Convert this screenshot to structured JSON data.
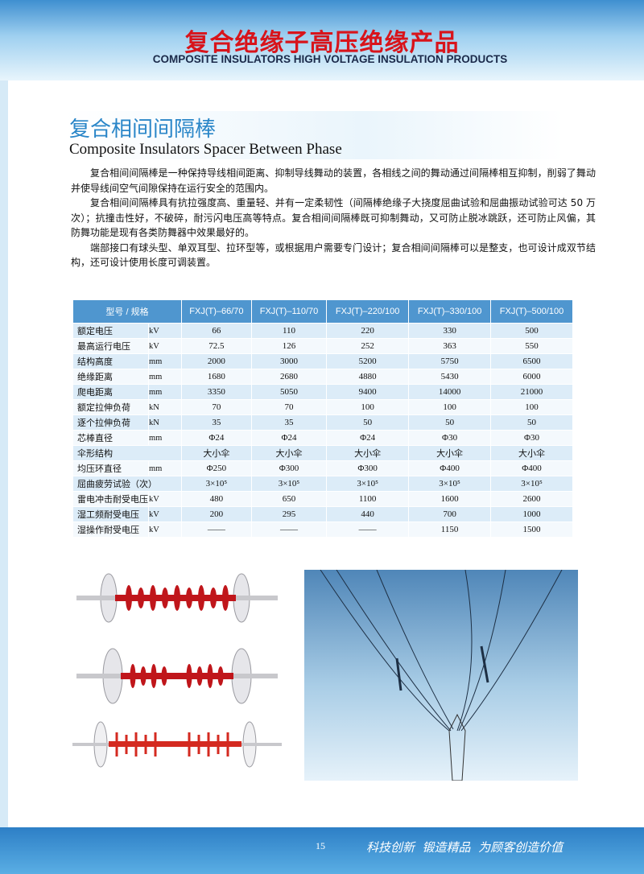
{
  "header": {
    "title": "复合绝缘子高压绝缘产品",
    "subtitle": "COMPOSITE INSULATORS HIGH VOLTAGE INSULATION PRODUCTS"
  },
  "section": {
    "title_cn": "复合相间间隔棒",
    "title_en": "Composite Insulators Spacer Between Phase"
  },
  "paragraphs": [
    "复合相间间隔棒是一种保持导线相间距离、抑制导线舞动的装置，各相线之间的舞动通过间隔棒相互抑制，削弱了舞动并使导线间空气间隙保持在运行安全的范围内。",
    "复合相间间隔棒具有抗拉强度高、重量轻、并有一定柔韧性（间隔棒绝缘子大挠度屈曲试验和屈曲振动试验可达 50 万次）；抗撞击性好，不破碎，耐污闪电压高等特点。复合相间间隔棒既可抑制舞动，又可防止脱冰跳跃，还可防止风偏，其防舞功能是现有各类防舞器中效果最好的。",
    "端部接口有球头型、单双耳型、拉环型等，或根据用户需要专门设计；复合相间间隔棒可以是整支，也可设计成双节结构，还可设计使用长度可调装置。"
  ],
  "table": {
    "columns": [
      "型号 / 规格",
      "FXJ(T)–66/70",
      "FXJ(T)–110/70",
      "FXJ(T)–220/100",
      "FXJ(T)–330/100",
      "FXJ(T)–500/100"
    ],
    "rows": [
      {
        "label": "额定电压",
        "unit": "kV",
        "values": [
          66,
          110,
          220,
          330,
          500
        ]
      },
      {
        "label": "最高运行电压",
        "unit": "kV",
        "values": [
          72.5,
          126,
          252,
          363,
          550
        ]
      },
      {
        "label": "结构高度",
        "unit": "mm",
        "values": [
          2000,
          3000,
          5200,
          5750,
          6500
        ]
      },
      {
        "label": "绝缘距离",
        "unit": "mm",
        "values": [
          1680,
          2680,
          4880,
          5430,
          6000
        ]
      },
      {
        "label": "爬电距离",
        "unit": "mm",
        "values": [
          3350,
          5050,
          9400,
          14000,
          21000
        ]
      },
      {
        "label": "额定拉伸负荷",
        "unit": "kN",
        "values": [
          70,
          70,
          100,
          100,
          100
        ]
      },
      {
        "label": "逐个拉伸负荷",
        "unit": "kN",
        "values": [
          35,
          35,
          50,
          50,
          50
        ]
      },
      {
        "label": "芯棒直径",
        "unit": "mm",
        "values": [
          "Φ24",
          "Φ24",
          "Φ24",
          "Φ30",
          "Φ30"
        ]
      },
      {
        "label": "伞形结构",
        "values": [
          "大小伞",
          "大小伞",
          "大小伞",
          "大小伞",
          "大小伞"
        ]
      },
      {
        "label": "均压环直径",
        "unit": "mm",
        "values": [
          "Φ250",
          "Φ300",
          "Φ300",
          "Φ400",
          "Φ400"
        ]
      },
      {
        "label": "屈曲疲劳试验（次）",
        "values": [
          "3×10⁵",
          "3×10⁵",
          "3×10⁵",
          "3×10⁵",
          "3×10⁵"
        ]
      },
      {
        "label": "雷电冲击耐受电压",
        "unit": "kV",
        "values": [
          480,
          650,
          1100,
          1600,
          2600
        ]
      },
      {
        "label": "湿工频耐受电压",
        "unit": "kV",
        "values": [
          200,
          295,
          440,
          700,
          1000
        ]
      },
      {
        "label": "湿操作耐受电压",
        "unit": "kV",
        "values": [
          "——",
          "——",
          "——",
          1150,
          1500
        ]
      }
    ]
  },
  "footer": {
    "page": "15",
    "slogan": "科技创新  锻造精品  为顾客创造价值"
  }
}
